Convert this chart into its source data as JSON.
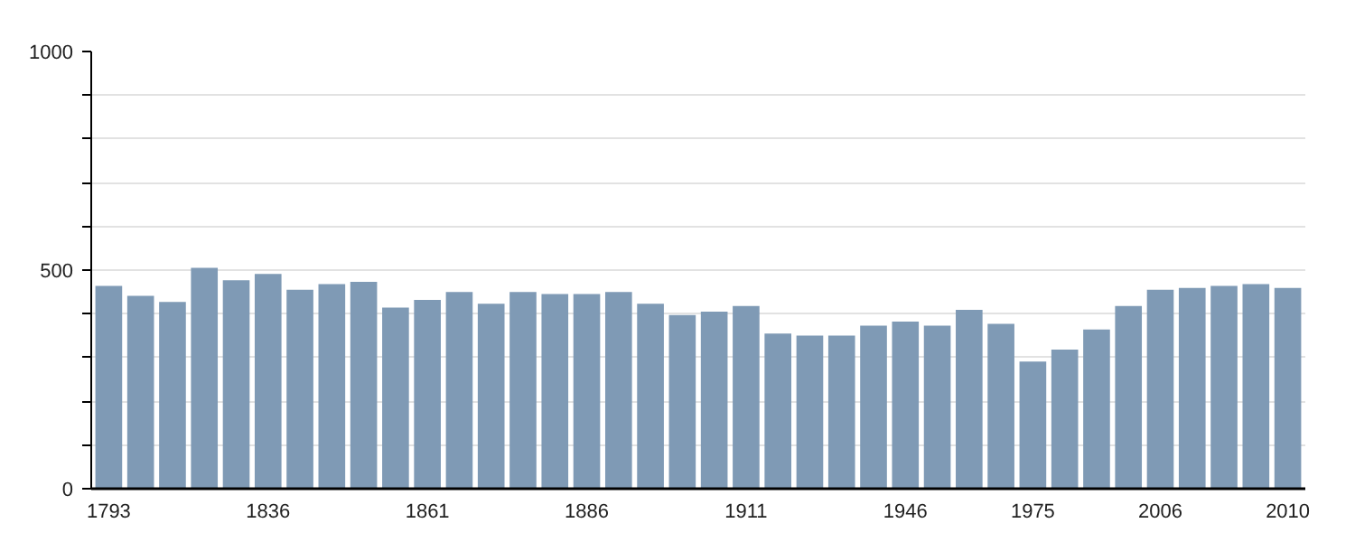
{
  "chart_data": {
    "type": "bar",
    "categories": [
      "1793",
      null,
      null,
      null,
      null,
      "1836",
      null,
      null,
      null,
      null,
      "1861",
      null,
      null,
      null,
      null,
      "1886",
      null,
      null,
      null,
      null,
      "1911",
      null,
      null,
      null,
      null,
      "1946",
      null,
      null,
      null,
      "1975",
      null,
      null,
      null,
      "2006",
      null,
      null,
      null,
      "2010"
    ],
    "values": [
      464,
      441,
      427,
      505,
      477,
      491,
      455,
      468,
      473,
      414,
      432,
      450,
      423,
      450,
      445,
      445,
      450,
      423,
      397,
      405,
      418,
      355,
      350,
      350,
      373,
      382,
      373,
      409,
      377,
      291,
      318,
      364,
      418,
      455,
      459,
      464,
      468,
      459
    ],
    "color": "#7f9ab5",
    "ylim": [
      0,
      1000
    ],
    "yticks": [
      0,
      {
        "value": 100,
        "label": null
      },
      {
        "value": 200,
        "label": null
      },
      {
        "value": 300,
        "label": null
      },
      {
        "value": 400,
        "label": null
      },
      500,
      {
        "value": 600,
        "label": null
      },
      {
        "value": 700,
        "label": null
      },
      {
        "value": 800,
        "label": null
      },
      {
        "value": 900,
        "label": null
      },
      1000
    ],
    "grid": "y"
  }
}
